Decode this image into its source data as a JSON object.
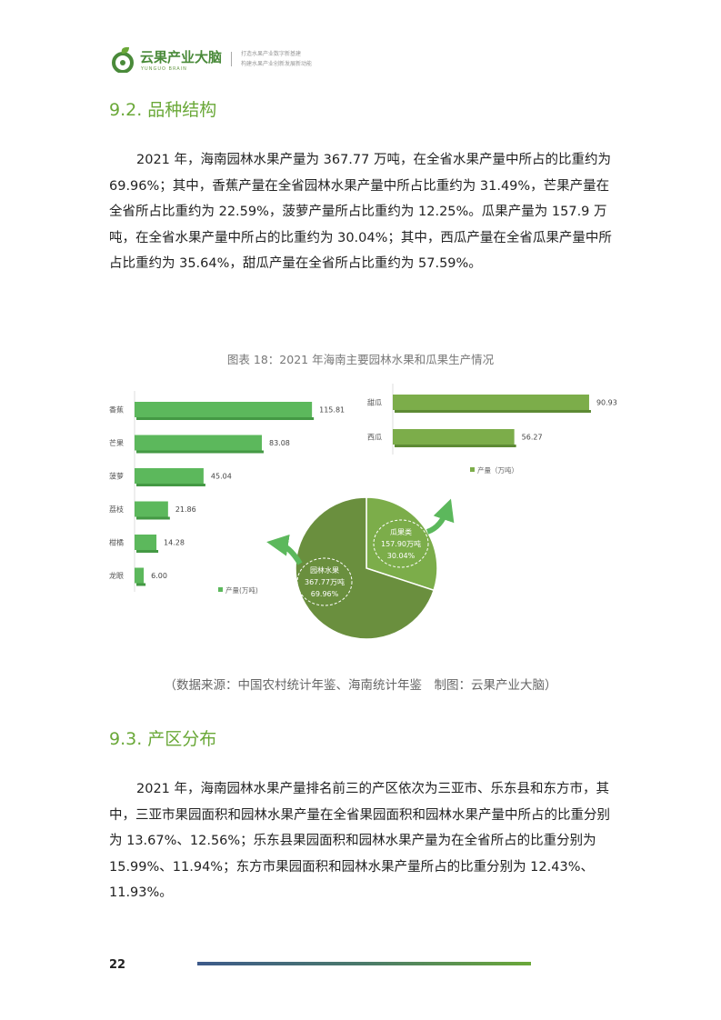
{
  "header": {
    "logo_name": "云果产业大脑",
    "logo_sub": "YUNGUO BRAIN",
    "tagline": [
      "打造水果产业数字新基建",
      "构建水果产业创新发展新动能"
    ]
  },
  "sections": [
    {
      "title": "9.2. 品种结构",
      "paragraph": "2021 年，海南园林水果产量为 367.77 万吨，在全省水果产量中所占的比重约为 69.96%；其中，香蕉产量在全省园林水果产量中所占比重约为 31.49%，芒果产量在全省所占比重约为 22.59%，菠萝产量所占比重约为 12.25%。瓜果产量为 157.9 万吨，在全省水果产量中所占的比重约为 30.04%；其中，西瓜产量在全省瓜果产量中所占比重约为 35.64%，甜瓜产量在全省所占比重约为 57.59%。"
    },
    {
      "title": "9.3. 产区分布",
      "paragraph": "2021 年，海南园林水果产量排名前三的产区依次为三亚市、乐东县和东方市，其中，三亚市果园面积和园林水果产量在全省果园面积和园林水果产量中所占的比重分别为 13.67%、12.56%；乐东县果园面积和园林水果产量为在全省所占的比重分别为 15.99%、11.94%；东方市果园面积和园林水果产量所占的比重分别为 12.43%、11.93%。"
    }
  ],
  "figure": {
    "caption": "图表 18：2021 年海南主要园林水果和瓜果生产情况",
    "source": "（数据来源：中国农村统计年鉴、海南统计年鉴　制图：云果产业大脑）"
  },
  "chart_data": [
    {
      "type": "bar",
      "orientation": "horizontal",
      "categories": [
        "香蕉",
        "芒果",
        "菠萝",
        "荔枝",
        "柑橘",
        "龙眼"
      ],
      "series": [
        {
          "name": "产量(万吨)",
          "values": [
            115.81,
            83.08,
            45.04,
            21.86,
            14.28,
            6.0
          ]
        }
      ],
      "legend": "bottom",
      "color": "#5cb85c"
    },
    {
      "type": "bar",
      "orientation": "horizontal",
      "categories": [
        "甜瓜",
        "西瓜"
      ],
      "series": [
        {
          "name": "产量（万吨）",
          "values": [
            90.93,
            56.27
          ]
        }
      ],
      "legend": "bottom",
      "color": "#7cad4a"
    },
    {
      "type": "pie",
      "slices": [
        {
          "label": "瓜果类",
          "value": 157.9,
          "value_label": "157.90万吨",
          "percent": "30.04%",
          "color": "#7cad4a"
        },
        {
          "label": "园林水果",
          "value": 367.77,
          "value_label": "367.77万吨",
          "percent": "69.96%",
          "color": "#6a8f3e"
        }
      ]
    }
  ],
  "footer": {
    "page_number": "22"
  }
}
